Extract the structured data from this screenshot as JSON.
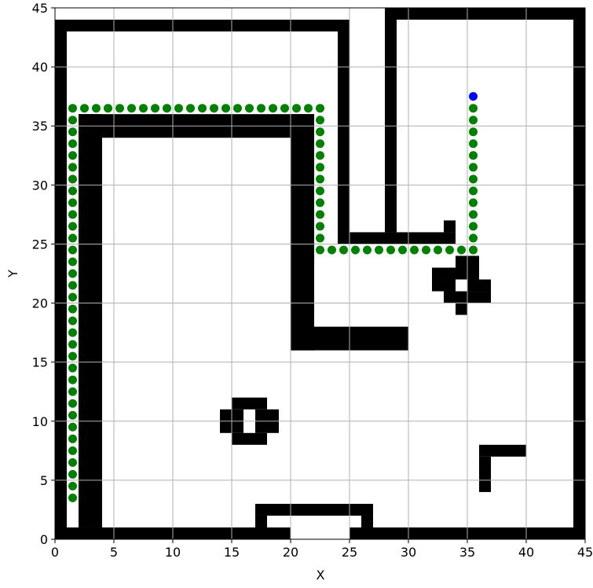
{
  "chart_data": {
    "type": "gridmap",
    "x_label": "X",
    "y_label": "Y",
    "xlim": [
      0,
      45
    ],
    "ylim": [
      0,
      45
    ],
    "xticks": [
      0,
      5,
      10,
      15,
      20,
      25,
      30,
      35,
      40,
      45
    ],
    "yticks": [
      0,
      5,
      10,
      15,
      20,
      25,
      30,
      35,
      40,
      45
    ],
    "grid": true,
    "obstacles": {
      "color": "#000000",
      "rects": [
        [
          0,
          0,
          1,
          44
        ],
        [
          0,
          43,
          25,
          44
        ],
        [
          24,
          25,
          25,
          44
        ],
        [
          25,
          25,
          34,
          26
        ],
        [
          33,
          26,
          34,
          27
        ],
        [
          28,
          26,
          29,
          45
        ],
        [
          28,
          44,
          45,
          45
        ],
        [
          44,
          0,
          45,
          45
        ],
        [
          0,
          0,
          20,
          1
        ],
        [
          25,
          0,
          45,
          1
        ],
        [
          17,
          1,
          18,
          2
        ],
        [
          26,
          1,
          27,
          2
        ],
        [
          17,
          2,
          27,
          3
        ],
        [
          2,
          1,
          4,
          36
        ],
        [
          2,
          34,
          22,
          36
        ],
        [
          20,
          16,
          22,
          36
        ],
        [
          20,
          16,
          30,
          18
        ],
        [
          34,
          23,
          36,
          24
        ],
        [
          32,
          22,
          36,
          23
        ],
        [
          32,
          21,
          34,
          22
        ],
        [
          35,
          21,
          37,
          22
        ],
        [
          33,
          20,
          37,
          21
        ],
        [
          34,
          19,
          35,
          20
        ],
        [
          15,
          11,
          18,
          12
        ],
        [
          14,
          9,
          16,
          11
        ],
        [
          17,
          9,
          19,
          11
        ],
        [
          15,
          8,
          18,
          9
        ],
        [
          36,
          7,
          40,
          8
        ],
        [
          36,
          4,
          37,
          7
        ]
      ]
    },
    "path": {
      "color": "#008000",
      "x": [
        1.5,
        1.5,
        1.5,
        1.5,
        1.5,
        1.5,
        1.5,
        1.5,
        1.5,
        1.5,
        1.5,
        1.5,
        1.5,
        1.5,
        1.5,
        1.5,
        1.5,
        1.5,
        1.5,
        1.5,
        1.5,
        1.5,
        1.5,
        1.5,
        1.5,
        1.5,
        1.5,
        1.5,
        1.5,
        1.5,
        1.5,
        1.5,
        1.5,
        1.5,
        2.5,
        3.5,
        4.5,
        5.5,
        6.5,
        7.5,
        8.5,
        9.5,
        10.5,
        11.5,
        12.5,
        13.5,
        14.5,
        15.5,
        16.5,
        17.5,
        18.5,
        19.5,
        20.5,
        21.5,
        22.5,
        22.5,
        22.5,
        22.5,
        22.5,
        22.5,
        22.5,
        22.5,
        22.5,
        22.5,
        22.5,
        22.5,
        22.5,
        23.5,
        24.5,
        25.5,
        26.5,
        27.5,
        28.5,
        29.5,
        30.5,
        31.5,
        32.5,
        33.5,
        34.5,
        35.5,
        35.5,
        35.5,
        35.5,
        35.5,
        35.5,
        35.5,
        35.5,
        35.5,
        35.5,
        35.5,
        35.5,
        35.5
      ],
      "y": [
        3.5,
        4.5,
        5.5,
        6.5,
        7.5,
        8.5,
        9.5,
        10.5,
        11.5,
        12.5,
        13.5,
        14.5,
        15.5,
        16.5,
        17.5,
        18.5,
        19.5,
        20.5,
        21.5,
        22.5,
        23.5,
        24.5,
        25.5,
        26.5,
        27.5,
        28.5,
        29.5,
        30.5,
        31.5,
        32.5,
        33.5,
        34.5,
        35.5,
        36.5,
        36.5,
        36.5,
        36.5,
        36.5,
        36.5,
        36.5,
        36.5,
        36.5,
        36.5,
        36.5,
        36.5,
        36.5,
        36.5,
        36.5,
        36.5,
        36.5,
        36.5,
        36.5,
        36.5,
        36.5,
        36.5,
        35.5,
        34.5,
        33.5,
        32.5,
        31.5,
        30.5,
        29.5,
        28.5,
        27.5,
        26.5,
        25.5,
        24.5,
        24.5,
        24.5,
        24.5,
        24.5,
        24.5,
        24.5,
        24.5,
        24.5,
        24.5,
        24.5,
        24.5,
        24.5,
        24.5,
        25.5,
        26.5,
        27.5,
        28.5,
        29.5,
        30.5,
        31.5,
        32.5,
        33.5,
        34.5,
        35.5,
        36.5
      ]
    },
    "goal": {
      "color": "#0000ff",
      "x": 35.5,
      "y": 37.5
    }
  }
}
